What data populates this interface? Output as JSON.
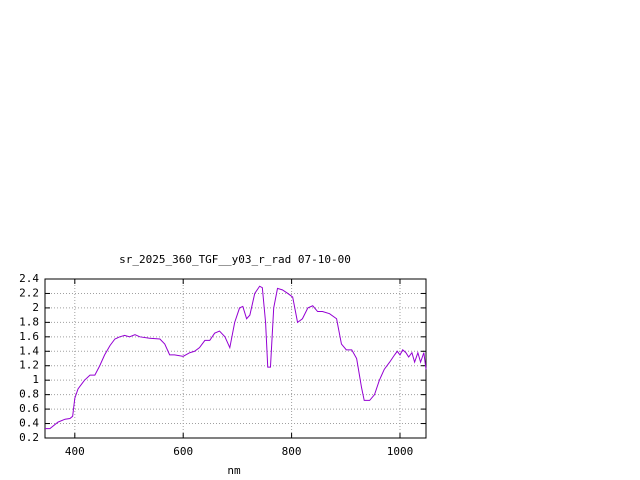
{
  "chart_data": {
    "type": "line",
    "title": "sr_2025_360_TGF__y03_r_rad 07-10-00",
    "x_label": "nm",
    "x": [
      345,
      354,
      369,
      382,
      391,
      396,
      400,
      406,
      418,
      428,
      437,
      446,
      455,
      465,
      474,
      483,
      492,
      501,
      511,
      520,
      538,
      557,
      566,
      575,
      584,
      600,
      612,
      621,
      630,
      640,
      649,
      658,
      667,
      677,
      686,
      695,
      704,
      710,
      717,
      723,
      732,
      741,
      746,
      752,
      756,
      761,
      767,
      774,
      783,
      793,
      802,
      811,
      820,
      830,
      839,
      848,
      857,
      870,
      883,
      892,
      901,
      911,
      920,
      929,
      934,
      944,
      953,
      962,
      971,
      981,
      990,
      995,
      1000,
      1005,
      1011,
      1016,
      1022,
      1027,
      1033,
      1038,
      1044,
      1048
    ],
    "series": [
      {
        "color": "#9400d3",
        "values": [
          0.33,
          0.33,
          0.42,
          0.46,
          0.47,
          0.5,
          0.75,
          0.88,
          1.0,
          1.07,
          1.07,
          1.2,
          1.35,
          1.48,
          1.57,
          1.6,
          1.62,
          1.6,
          1.63,
          1.6,
          1.58,
          1.57,
          1.5,
          1.35,
          1.35,
          1.33,
          1.38,
          1.4,
          1.45,
          1.55,
          1.55,
          1.65,
          1.68,
          1.6,
          1.45,
          1.8,
          2.0,
          2.02,
          1.85,
          1.9,
          2.2,
          2.3,
          2.28,
          1.8,
          1.18,
          1.18,
          2.0,
          2.27,
          2.25,
          2.2,
          2.15,
          1.8,
          1.85,
          2.0,
          2.03,
          1.95,
          1.95,
          1.92,
          1.85,
          1.5,
          1.42,
          1.42,
          1.3,
          0.9,
          0.72,
          0.72,
          0.8,
          1.0,
          1.15,
          1.25,
          1.35,
          1.4,
          1.35,
          1.42,
          1.38,
          1.32,
          1.38,
          1.25,
          1.38,
          1.25,
          1.38,
          1.15
        ]
      }
    ],
    "xlim": [
      345,
      1048
    ],
    "xticks": [
      400,
      600,
      800,
      1000
    ],
    "ylim": [
      0.2,
      2.4
    ],
    "yticks": [
      0.2,
      0.4,
      0.6,
      0.8,
      1,
      1.2,
      1.4,
      1.6,
      1.8,
      2,
      2.2,
      2.4
    ],
    "grid": true
  }
}
